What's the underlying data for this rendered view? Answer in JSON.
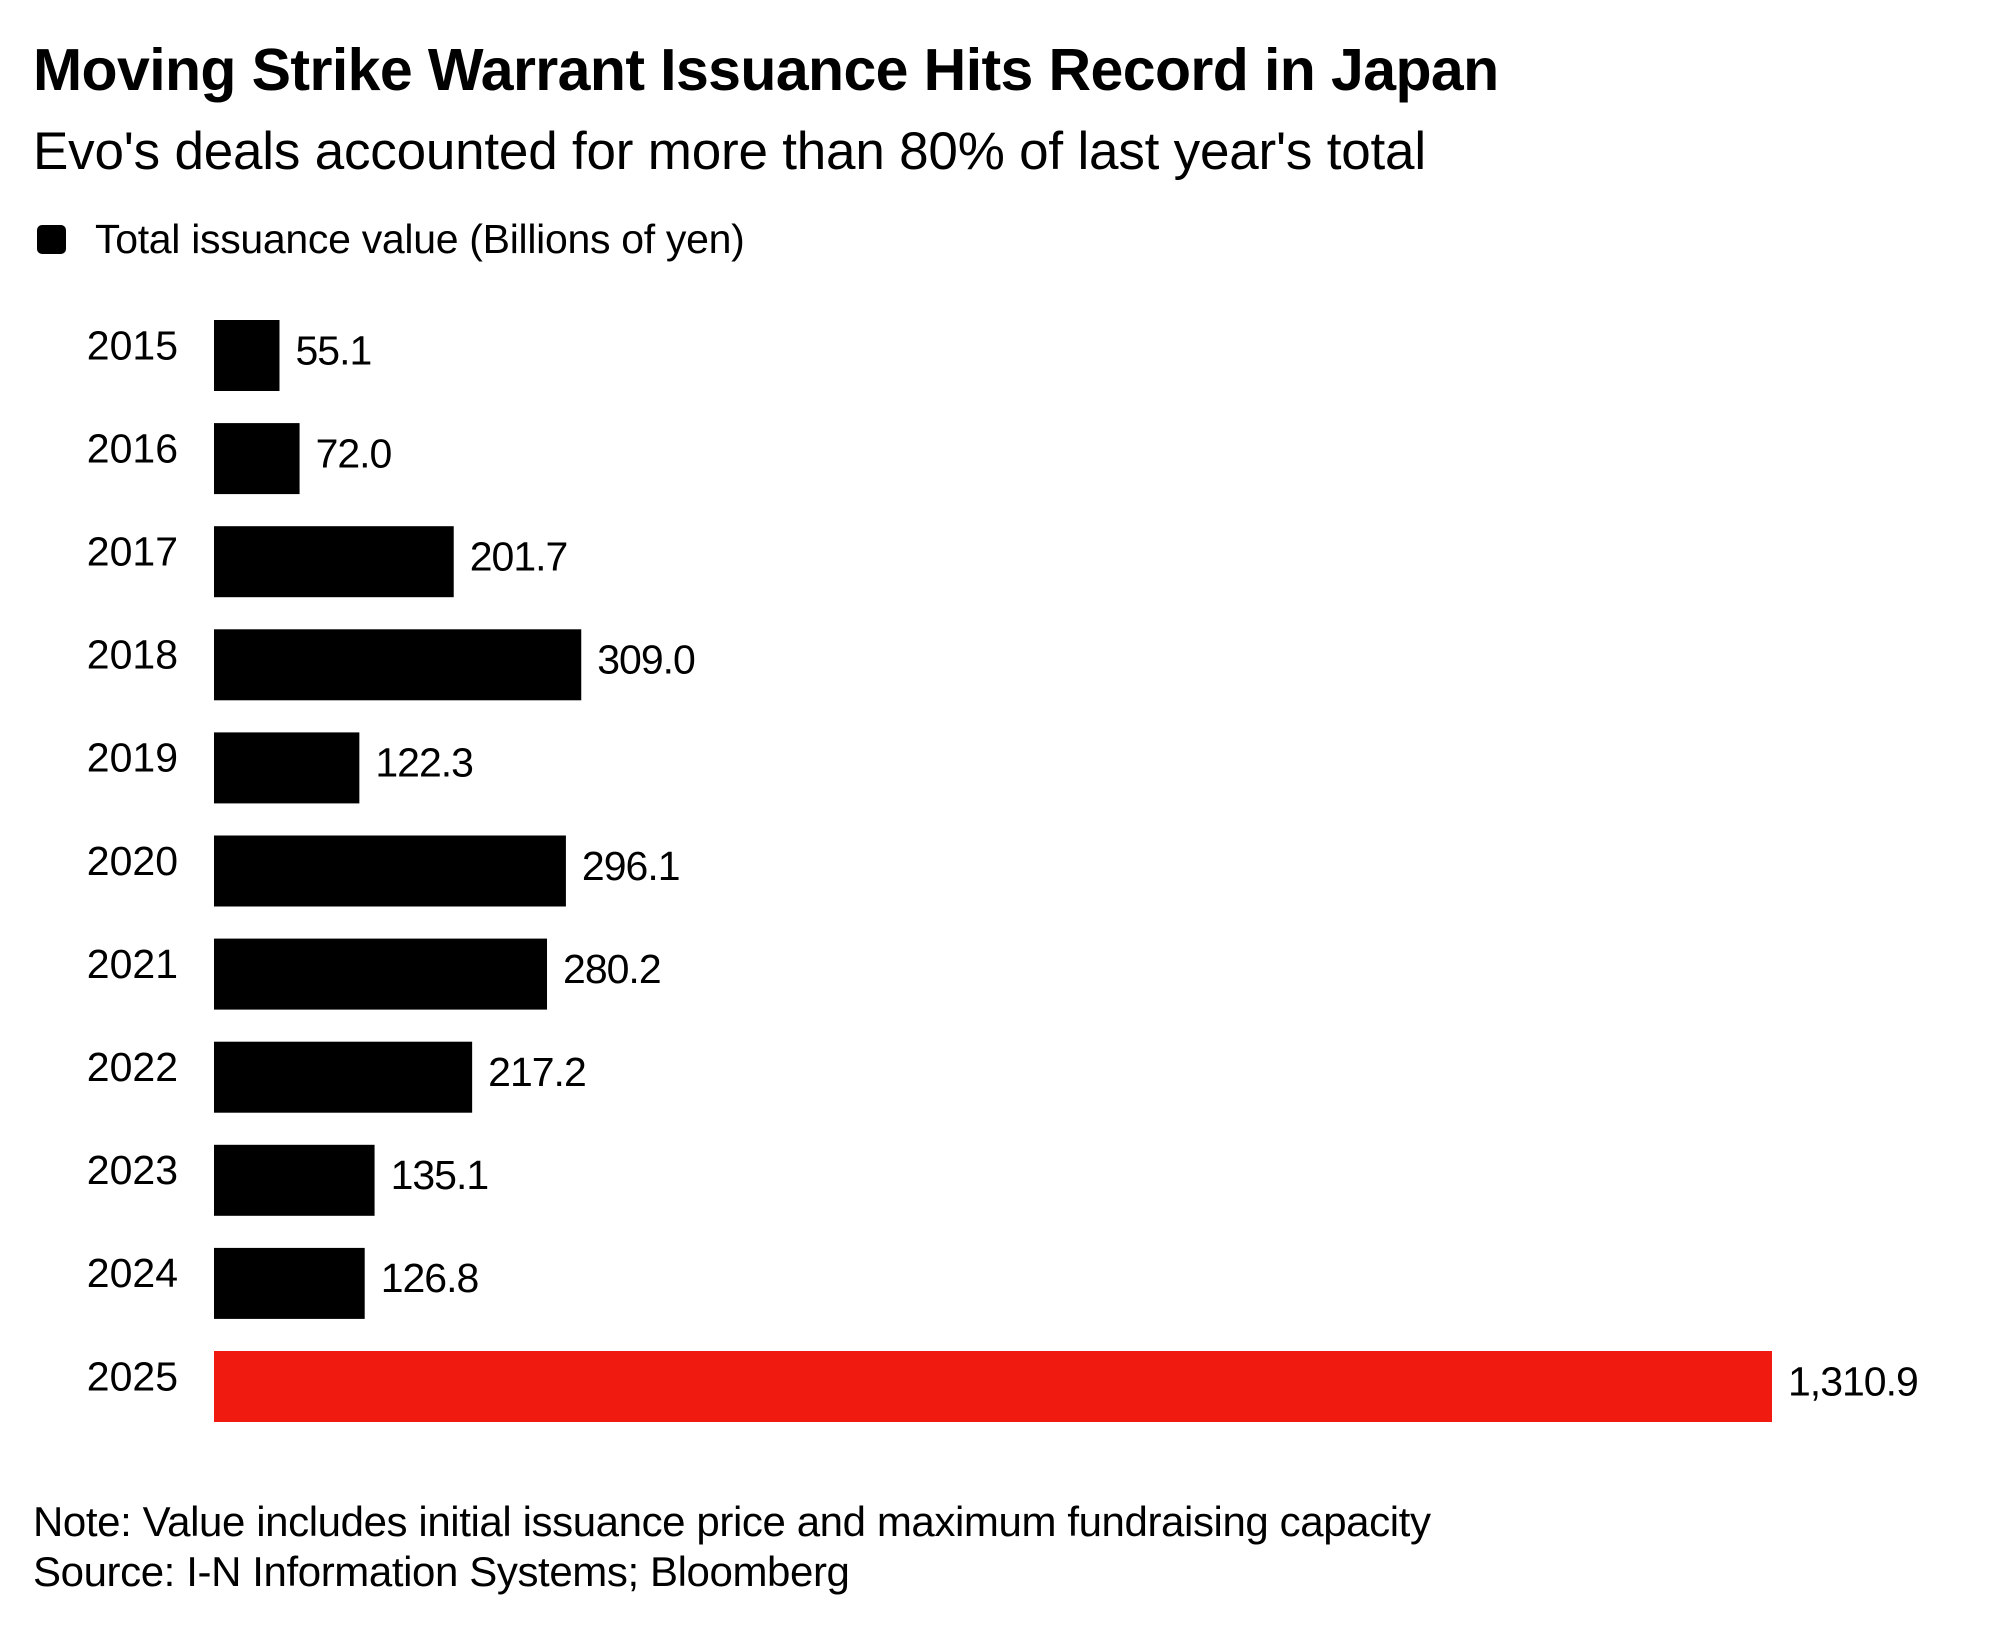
{
  "header": {
    "title": "Moving Strike Warrant Issuance Hits Record in Japan",
    "subtitle": "Evo's deals accounted for more than 80% of last year's total"
  },
  "legend": {
    "items": [
      {
        "label": "Total issuance value (Billions of yen)",
        "color": "#000000",
        "icon": "square-swatch"
      }
    ]
  },
  "footer": {
    "note": "Note: Value includes initial issuance price and maximum fundraising capacity",
    "source": "Source: I-N Information Systems; Bloomberg"
  },
  "colors": {
    "default_bar": "#000000",
    "highlight_bar": "#F01A10",
    "text": "#000000",
    "background": "#FFFFFF"
  },
  "chart_data": {
    "type": "bar",
    "orientation": "horizontal",
    "title": "Moving Strike Warrant Issuance Hits Record in Japan",
    "subtitle": "Evo's deals accounted for more than 80% of last year's total",
    "xlabel": "",
    "ylabel": "",
    "categories": [
      "2015",
      "2016",
      "2017",
      "2018",
      "2019",
      "2020",
      "2021",
      "2022",
      "2023",
      "2024",
      "2025"
    ],
    "series": [
      {
        "name": "Total issuance value (Billions of yen)",
        "values": [
          55.1,
          72.0,
          201.7,
          309.0,
          122.3,
          296.1,
          280.2,
          217.2,
          135.1,
          126.8,
          1310.9
        ],
        "labels": [
          "55.1",
          "72.0",
          "201.7",
          "309.0",
          "122.3",
          "296.1",
          "280.2",
          "217.2",
          "135.1",
          "126.8",
          "1,310.9"
        ]
      }
    ],
    "highlight": {
      "category": "2025",
      "color": "#F01A10"
    },
    "xlim": [
      0,
      1310.9
    ],
    "grid": false,
    "legend_position": "top-left",
    "data_labels": true,
    "note": "Note: Value includes initial issuance price and maximum fundraising capacity",
    "source": "Source: I-N Information Systems; Bloomberg"
  }
}
